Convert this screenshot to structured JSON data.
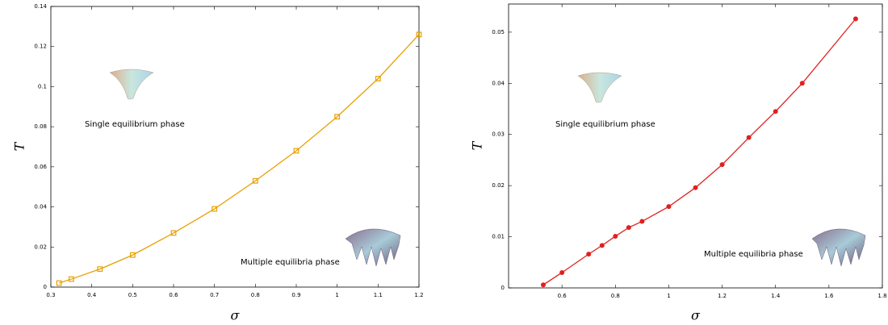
{
  "chart_data": [
    {
      "type": "line",
      "x_label": "σ",
      "y_label": "T",
      "annotations": [
        "Single equilibrium phase",
        "Multiple equilibria phase"
      ],
      "x": [
        0.32,
        0.35,
        0.42,
        0.5,
        0.6,
        0.7,
        0.8,
        0.9,
        1.0,
        1.1,
        1.2
      ],
      "series": [
        {
          "color": "#e8a000",
          "marker": "square",
          "values": [
            0.002,
            0.004,
            0.009,
            0.016,
            0.027,
            0.039,
            0.053,
            0.068,
            0.085,
            0.104,
            0.126
          ]
        }
      ],
      "xlim": [
        0.3,
        1.2
      ],
      "xticks": [
        0.3,
        0.4,
        0.5,
        0.6,
        0.7,
        0.8,
        0.9,
        1,
        1.1,
        1.2
      ],
      "ylim": [
        0,
        0.14
      ],
      "yticks": [
        0,
        0.02,
        0.04,
        0.06,
        0.08,
        0.1,
        0.12,
        0.14
      ]
    },
    {
      "type": "line",
      "x_label": "σ",
      "y_label": "T",
      "annotations": [
        "Single equilibrium phase",
        "Multiple equilibria phase"
      ],
      "x": [
        0.53,
        0.6,
        0.7,
        0.75,
        0.8,
        0.85,
        0.9,
        1.0,
        1.1,
        1.2,
        1.3,
        1.4,
        1.5,
        1.7
      ],
      "series": [
        {
          "color": "#e02020",
          "marker": "circle",
          "values": [
            0.0006,
            0.003,
            0.0066,
            0.0083,
            0.0101,
            0.0118,
            0.013,
            0.0159,
            0.0196,
            0.0241,
            0.0294,
            0.0345,
            0.04,
            0.0526
          ]
        }
      ],
      "xlim": [
        0.4,
        1.8
      ],
      "xticks": [
        0.6,
        0.8,
        1,
        1.2,
        1.4,
        1.6,
        1.8
      ],
      "ylim": [
        0,
        0.0555
      ],
      "yticks": [
        0,
        0.01,
        0.02,
        0.03,
        0.04,
        0.05
      ]
    }
  ]
}
